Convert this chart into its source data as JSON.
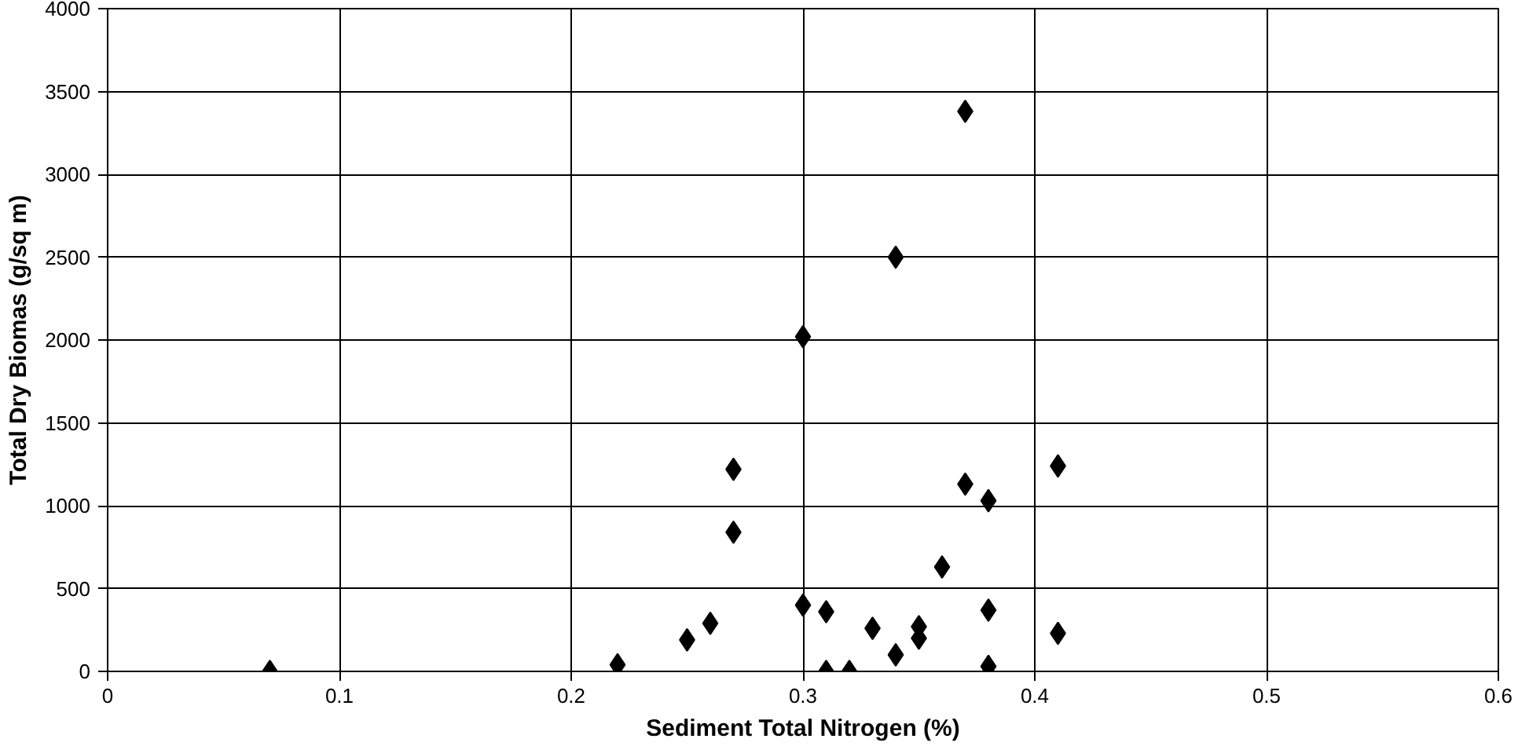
{
  "chart_data": {
    "type": "scatter",
    "xlabel": "Sediment Total Nitrogen (%)",
    "ylabel": "Total Dry Biomas (g/sq m)",
    "x": [
      0.07,
      0.22,
      0.25,
      0.26,
      0.27,
      0.27,
      0.3,
      0.3,
      0.31,
      0.31,
      0.32,
      0.33,
      0.34,
      0.34,
      0.35,
      0.35,
      0.36,
      0.37,
      0.37,
      0.38,
      0.38,
      0.38,
      0.41,
      0.41
    ],
    "series": [
      {
        "color": "#000000",
        "values": [
          0,
          40,
          190,
          290,
          1220,
          840,
          2020,
          400,
          360,
          0,
          0,
          260,
          100,
          2500,
          200,
          270,
          630,
          3380,
          1130,
          1030,
          370,
          30,
          1240,
          230
        ]
      }
    ],
    "xlim": [
      0,
      0.6
    ],
    "xticks": [
      0,
      0.1,
      0.2,
      0.3,
      0.4,
      0.5,
      0.6
    ],
    "ylim": [
      0,
      4000
    ],
    "yticks": [
      0,
      500,
      1000,
      1500,
      2000,
      2500,
      3000,
      3500,
      4000
    ],
    "grid": true,
    "marker": "diamond"
  }
}
